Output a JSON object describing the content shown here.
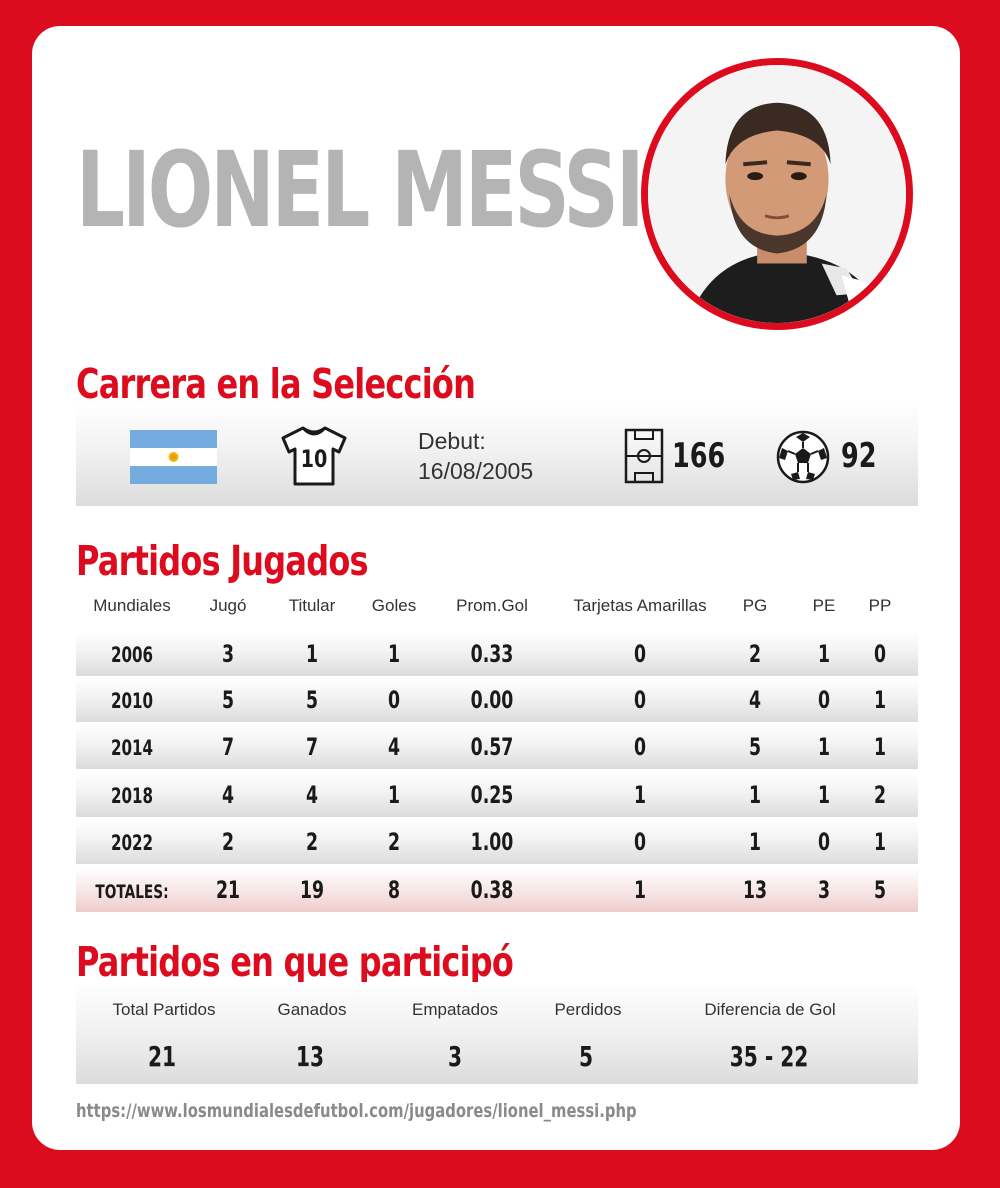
{
  "player": {
    "name": "LIONEL MESSI"
  },
  "career": {
    "title": "Carrera en la Selección",
    "country_flag": "argentina-flag",
    "shirt_number": "10",
    "debut_label": "Debut:",
    "debut_date": "16/08/2005",
    "caps": "166",
    "goals": "92"
  },
  "matches": {
    "title": "Partidos Jugados",
    "headers": [
      "Mundiales",
      "Jugó",
      "Titular",
      "Goles",
      "Prom.Gol",
      "Tarjetas Amarillas",
      "PG",
      "PE",
      "PP"
    ],
    "rows": [
      [
        "2006",
        "3",
        "1",
        "1",
        "0.33",
        "0",
        "2",
        "1",
        "0"
      ],
      [
        "2010",
        "5",
        "5",
        "0",
        "0.00",
        "0",
        "4",
        "0",
        "1"
      ],
      [
        "2014",
        "7",
        "7",
        "4",
        "0.57",
        "0",
        "5",
        "1",
        "1"
      ],
      [
        "2018",
        "4",
        "4",
        "1",
        "0.25",
        "1",
        "1",
        "1",
        "2"
      ],
      [
        "2022",
        "2",
        "2",
        "2",
        "1.00",
        "0",
        "1",
        "0",
        "1"
      ]
    ],
    "totals": [
      "TOTALES:",
      "21",
      "19",
      "8",
      "0.38",
      "1",
      "13",
      "3",
      "5"
    ]
  },
  "participation": {
    "title": "Partidos en que participó",
    "labels": [
      "Total Partidos",
      "Ganados",
      "Empatados",
      "Perdidos",
      "Diferencia de Gol"
    ],
    "values": [
      "21",
      "13",
      "3",
      "5",
      "35 - 22"
    ]
  },
  "source_url": "https://www.losmundialesdefutbol.com/jugadores/lionel_messi.php",
  "colors": {
    "accent": "#dc0c1e",
    "name_gray": "#b4b4b4",
    "text": "#1a1a1a"
  }
}
